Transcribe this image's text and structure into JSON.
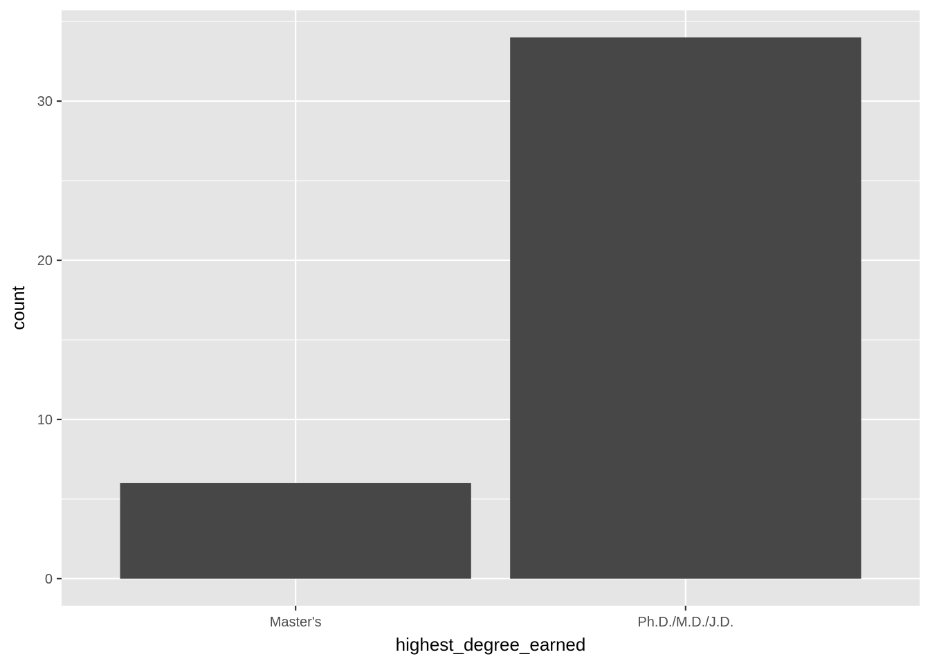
{
  "chart_data": {
    "type": "bar",
    "categories": [
      "Master's",
      "Ph.D./M.D./J.D."
    ],
    "values": [
      6,
      34
    ],
    "title": "",
    "xlabel": "highest_degree_earned",
    "ylabel": "count",
    "ylim": [
      -1.7,
      35.7
    ],
    "y_ticks": [
      0,
      10,
      20,
      30
    ],
    "y_minor_ticks": [
      5,
      15,
      25,
      35
    ],
    "grid": true,
    "legend": "none",
    "colors": {
      "panel_background": "#e5e5e5",
      "grid": "#ffffff",
      "bar_fill": "#474747",
      "tick_text": "#4d4d4d",
      "tick_mark": "#333333",
      "axis_title": "#000000"
    }
  }
}
